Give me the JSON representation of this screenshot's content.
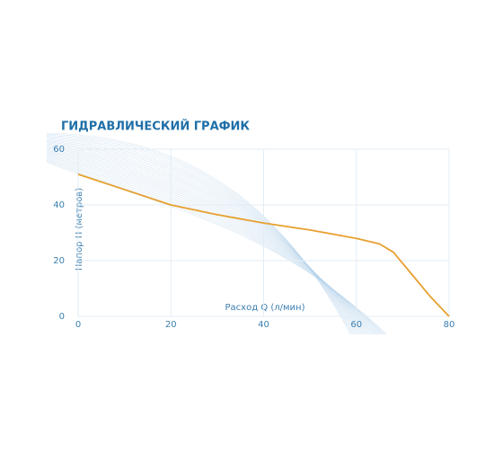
{
  "chart_data": {
    "type": "line",
    "title": "ГИДРАВЛИЧЕСКИЙ ГРАФИК",
    "x_label": "Расход Q (л/мин)",
    "y_label": "Напор Н (метров)",
    "x": [
      0,
      10,
      20,
      30,
      40,
      50,
      60,
      65,
      68,
      72,
      76,
      80
    ],
    "values": [
      51,
      45.5,
      40,
      36.5,
      33.5,
      31,
      28,
      26,
      23,
      15,
      7,
      0
    ],
    "color": "#e8a030",
    "xlim": [
      0,
      80
    ],
    "xticks": [
      0,
      20,
      40,
      60,
      80
    ],
    "ylim": [
      0,
      60
    ],
    "yticks": [
      0,
      20,
      40,
      60
    ],
    "grid": true
  }
}
